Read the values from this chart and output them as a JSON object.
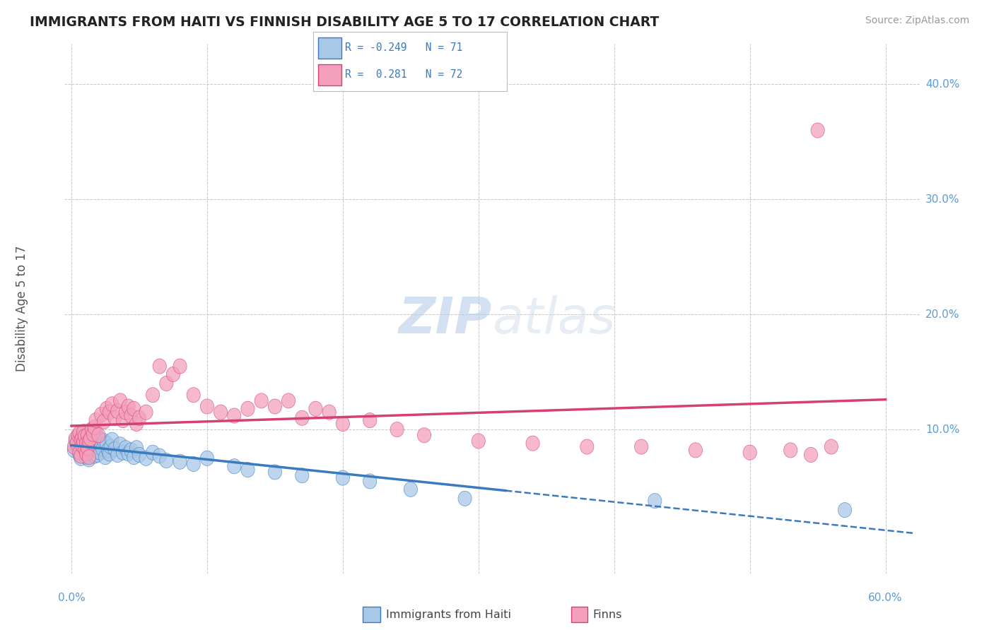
{
  "title": "IMMIGRANTS FROM HAITI VS FINNISH DISABILITY AGE 5 TO 17 CORRELATION CHART",
  "source": "Source: ZipAtlas.com",
  "ylabel": "Disability Age 5 to 17",
  "ytick_labels": [
    "10.0%",
    "20.0%",
    "30.0%",
    "40.0%"
  ],
  "ytick_values": [
    0.1,
    0.2,
    0.3,
    0.4
  ],
  "xlim": [
    -0.005,
    0.625
  ],
  "ylim": [
    -0.025,
    0.435
  ],
  "blue_color": "#a8c8e8",
  "pink_color": "#f4a0bc",
  "blue_line_color": "#3a7abf",
  "pink_line_color": "#d44070",
  "title_color": "#222222",
  "axis_label_color": "#5b9bd5",
  "grid_color": "#c8c8c8",
  "background_color": "#ffffff",
  "watermark_color": "#ccdaee",
  "legend_entries": [
    {
      "color": "#a8c8e8",
      "edge": "#3a7abf",
      "text": "R = -0.249   N = 71"
    },
    {
      "color": "#f4a0bc",
      "edge": "#d44070",
      "text": "R =  0.281   N = 72"
    }
  ],
  "bottom_legend": [
    {
      "color": "#a8c8e8",
      "edge": "#3a7abf",
      "label": "Immigrants from Haiti"
    },
    {
      "color": "#f4a0bc",
      "edge": "#d44070",
      "label": "Finns"
    }
  ],
  "blue_scatter_x": [
    0.002,
    0.003,
    0.004,
    0.005,
    0.006,
    0.006,
    0.007,
    0.007,
    0.008,
    0.008,
    0.009,
    0.009,
    0.01,
    0.01,
    0.011,
    0.011,
    0.012,
    0.012,
    0.013,
    0.013,
    0.014,
    0.014,
    0.015,
    0.015,
    0.016,
    0.016,
    0.017,
    0.017,
    0.018,
    0.018,
    0.019,
    0.019,
    0.02,
    0.02,
    0.021,
    0.022,
    0.023,
    0.024,
    0.025,
    0.026,
    0.027,
    0.028,
    0.029,
    0.03,
    0.032,
    0.034,
    0.036,
    0.038,
    0.04,
    0.042,
    0.044,
    0.046,
    0.048,
    0.05,
    0.055,
    0.06,
    0.065,
    0.07,
    0.08,
    0.09,
    0.1,
    0.12,
    0.13,
    0.15,
    0.17,
    0.2,
    0.22,
    0.25,
    0.29,
    0.43,
    0.57
  ],
  "blue_scatter_y": [
    0.082,
    0.09,
    0.086,
    0.093,
    0.078,
    0.095,
    0.088,
    0.075,
    0.091,
    0.083,
    0.085,
    0.097,
    0.08,
    0.092,
    0.087,
    0.076,
    0.093,
    0.082,
    0.088,
    0.074,
    0.09,
    0.081,
    0.086,
    0.095,
    0.079,
    0.091,
    0.084,
    0.077,
    0.089,
    0.083,
    0.094,
    0.078,
    0.085,
    0.092,
    0.08,
    0.087,
    0.083,
    0.09,
    0.076,
    0.088,
    0.082,
    0.079,
    0.085,
    0.091,
    0.083,
    0.078,
    0.087,
    0.08,
    0.084,
    0.079,
    0.082,
    0.076,
    0.084,
    0.078,
    0.075,
    0.08,
    0.077,
    0.073,
    0.072,
    0.07,
    0.075,
    0.068,
    0.065,
    0.063,
    0.06,
    0.058,
    0.055,
    0.048,
    0.04,
    0.038,
    0.03
  ],
  "pink_scatter_x": [
    0.002,
    0.003,
    0.004,
    0.005,
    0.006,
    0.006,
    0.007,
    0.007,
    0.008,
    0.008,
    0.009,
    0.009,
    0.01,
    0.01,
    0.011,
    0.011,
    0.012,
    0.012,
    0.013,
    0.013,
    0.014,
    0.015,
    0.016,
    0.017,
    0.018,
    0.02,
    0.022,
    0.024,
    0.026,
    0.028,
    0.03,
    0.032,
    0.034,
    0.036,
    0.038,
    0.04,
    0.042,
    0.044,
    0.046,
    0.048,
    0.05,
    0.055,
    0.06,
    0.065,
    0.07,
    0.075,
    0.08,
    0.09,
    0.1,
    0.11,
    0.12,
    0.13,
    0.14,
    0.15,
    0.16,
    0.17,
    0.18,
    0.19,
    0.2,
    0.22,
    0.24,
    0.26,
    0.3,
    0.34,
    0.38,
    0.42,
    0.46,
    0.5,
    0.53,
    0.545,
    0.56,
    0.55
  ],
  "pink_scatter_y": [
    0.085,
    0.092,
    0.088,
    0.095,
    0.08,
    0.097,
    0.091,
    0.077,
    0.093,
    0.086,
    0.089,
    0.098,
    0.083,
    0.094,
    0.088,
    0.079,
    0.095,
    0.084,
    0.09,
    0.076,
    0.092,
    0.1,
    0.096,
    0.102,
    0.108,
    0.095,
    0.113,
    0.107,
    0.118,
    0.115,
    0.122,
    0.11,
    0.116,
    0.125,
    0.108,
    0.115,
    0.12,
    0.112,
    0.118,
    0.105,
    0.11,
    0.115,
    0.13,
    0.155,
    0.14,
    0.148,
    0.155,
    0.13,
    0.12,
    0.115,
    0.112,
    0.118,
    0.125,
    0.12,
    0.125,
    0.11,
    0.118,
    0.115,
    0.105,
    0.108,
    0.1,
    0.095,
    0.09,
    0.088,
    0.085,
    0.085,
    0.082,
    0.08,
    0.082,
    0.078,
    0.085,
    0.36
  ]
}
